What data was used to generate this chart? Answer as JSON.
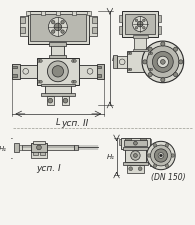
{
  "bg_color": "#f5f4f0",
  "lc": "#6a6a6a",
  "dc": "#2a2a2a",
  "label_usп_II": "усп. II",
  "label_usп_I": "усп. I",
  "label_L": "L",
  "label_H1": "H₁",
  "label_DN": "(DN 150)"
}
